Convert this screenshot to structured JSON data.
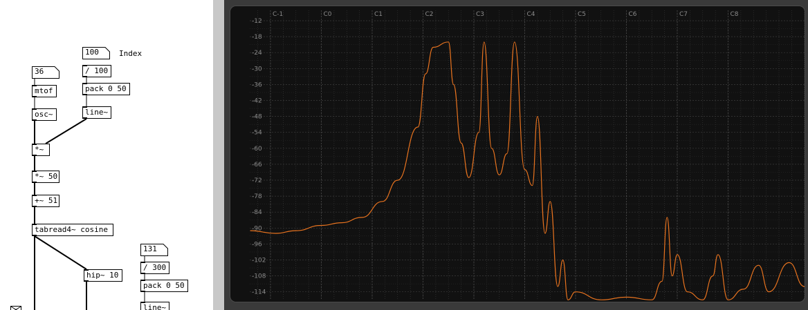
{
  "patch": {
    "objects": [
      {
        "name": "number-box-100",
        "text": "100"
      },
      {
        "name": "index-comment",
        "text": "Index"
      },
      {
        "name": "div-100-object",
        "text": "/ 100"
      },
      {
        "name": "pack-0-50-object-a",
        "text": "pack 0 50"
      },
      {
        "name": "line-object-a",
        "text": "line~"
      },
      {
        "name": "number-box-36",
        "text": "36"
      },
      {
        "name": "mtof-object",
        "text": "mtof"
      },
      {
        "name": "osc-object",
        "text": "osc~"
      },
      {
        "name": "multiply-object",
        "text": "*~"
      },
      {
        "name": "multiply-50-object",
        "text": "*~ 50"
      },
      {
        "name": "add-51-object",
        "text": "+~ 51"
      },
      {
        "name": "tabread4-object",
        "text": "tabread4~ cosine"
      },
      {
        "name": "number-box-131",
        "text": "131"
      },
      {
        "name": "div-300-object",
        "text": "/ 300"
      },
      {
        "name": "pack-0-50-object-b",
        "text": "pack 0 50"
      },
      {
        "name": "hip-10-object",
        "text": "hip~ 10"
      },
      {
        "name": "line-object-b",
        "text": "line~"
      }
    ]
  },
  "analyzer": {
    "colors": {
      "background": "#111111",
      "grid": "#3c3c3c",
      "curve": "#e8731f"
    },
    "y_ticks": [
      "-12",
      "-18",
      "-24",
      "-30",
      "-36",
      "-42",
      "-48",
      "-54",
      "-60",
      "-66",
      "-72",
      "-78",
      "-84",
      "-90",
      "-96",
      "-102",
      "-108",
      "-114"
    ],
    "x_ticks": [
      "C-1",
      "C0",
      "C1",
      "C2",
      "C3",
      "C4",
      "C5",
      "C6",
      "C7",
      "C8"
    ]
  },
  "chart_data": {
    "type": "line",
    "xlabel": "",
    "ylabel": "",
    "x_scale": "log (octaves)",
    "x_ticks": [
      "C-1",
      "C0",
      "C1",
      "C2",
      "C3",
      "C4",
      "C5",
      "C6",
      "C7",
      "C8"
    ],
    "ylim": [
      -117,
      -9
    ],
    "y_ticks": [
      -12,
      -18,
      -24,
      -30,
      -36,
      -42,
      -48,
      -54,
      -60,
      -66,
      -72,
      -78,
      -84,
      -90,
      -96,
      -102,
      -108,
      -114
    ],
    "grid": true,
    "series": [
      {
        "color": "#e8731f",
        "x_octave": [
          -1.4,
          -0.9,
          -0.5,
          0.0,
          0.4,
          0.8,
          1.2,
          1.5,
          1.9,
          2.05,
          2.2,
          2.5,
          2.6,
          2.75,
          2.9,
          3.1,
          3.2,
          3.35,
          3.5,
          3.65,
          3.8,
          4.0,
          4.15,
          4.25,
          4.4,
          4.5,
          4.65,
          4.75,
          4.85,
          5.0,
          5.5,
          6.0,
          6.5,
          6.7,
          6.8,
          6.9,
          7.0,
          7.2,
          7.5,
          7.7,
          7.8,
          8.0,
          8.3,
          8.6,
          8.8,
          9.2,
          9.5,
          9.6,
          9.65
        ],
        "y": [
          -91,
          -92,
          -91,
          -89,
          -88,
          -86,
          -80,
          -72,
          -52,
          -32,
          -22,
          -20,
          -36,
          -58,
          -71,
          -54,
          -20,
          -60,
          -70,
          -62,
          -20,
          -68,
          -74,
          -48,
          -92,
          -80,
          -112,
          -102,
          -117,
          -114,
          -117,
          -116,
          -117,
          -110,
          -86,
          -108,
          -100,
          -114,
          -117,
          -108,
          -100,
          -117,
          -113,
          -104,
          -114,
          -103,
          -112,
          -102,
          -117
        ]
      }
    ]
  }
}
